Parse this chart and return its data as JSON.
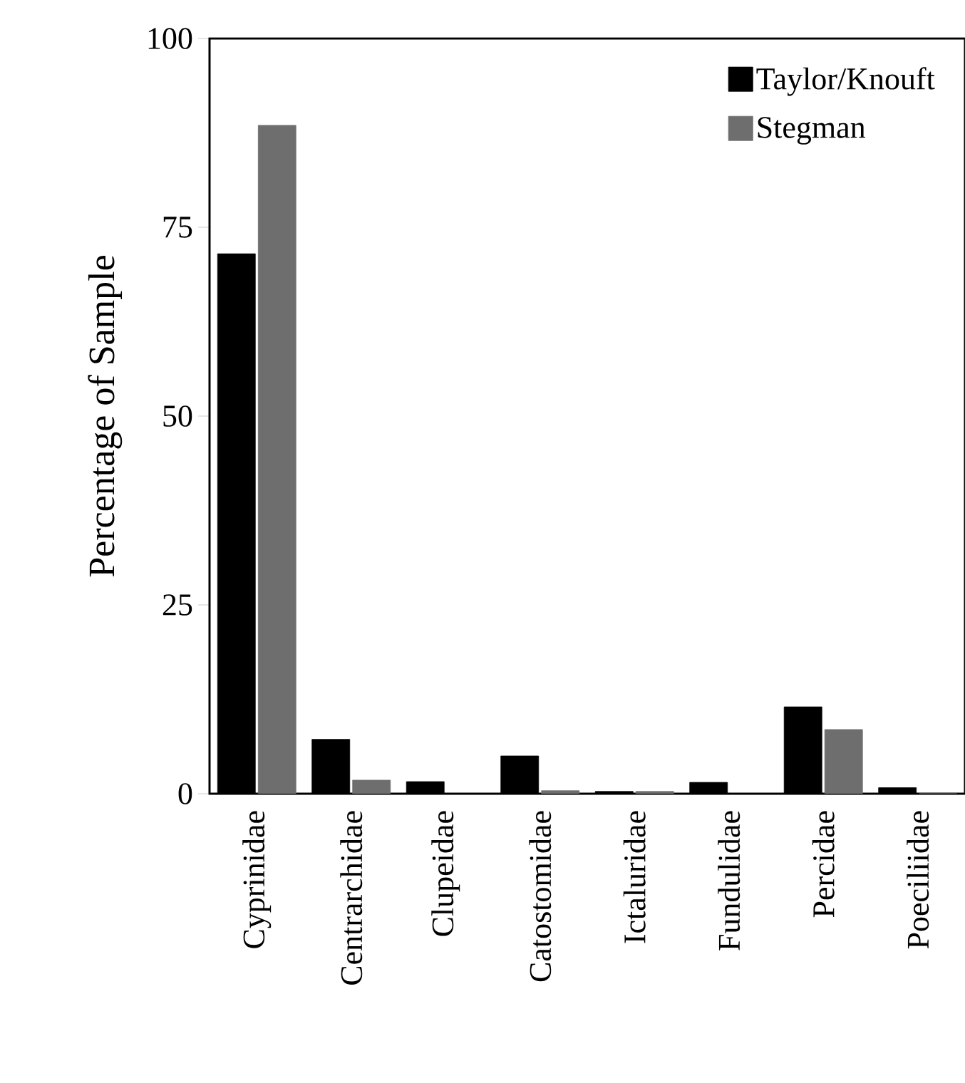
{
  "chart_data": {
    "type": "bar",
    "ylabel": "Percentage of Sample",
    "categories": [
      "Cyprinidae",
      "Centrarchidae",
      "Clupeidae",
      "Catostomidae",
      "Ictaluridae",
      "Fundulidae",
      "Percidae",
      "Poeciliidae"
    ],
    "series": [
      {
        "name": "Taylor/Knouft",
        "color": "#000000",
        "values": [
          71.5,
          7.2,
          1.6,
          5.0,
          0.3,
          1.5,
          11.5,
          0.8
        ]
      },
      {
        "name": "Stegman",
        "color": "#6e6e6e",
        "values": [
          88.5,
          1.8,
          null,
          0.4,
          0.3,
          null,
          8.5,
          0
        ]
      }
    ],
    "ylim": [
      0,
      100
    ],
    "yticks": [
      0,
      25,
      50,
      75,
      100
    ],
    "legend": "top right"
  }
}
